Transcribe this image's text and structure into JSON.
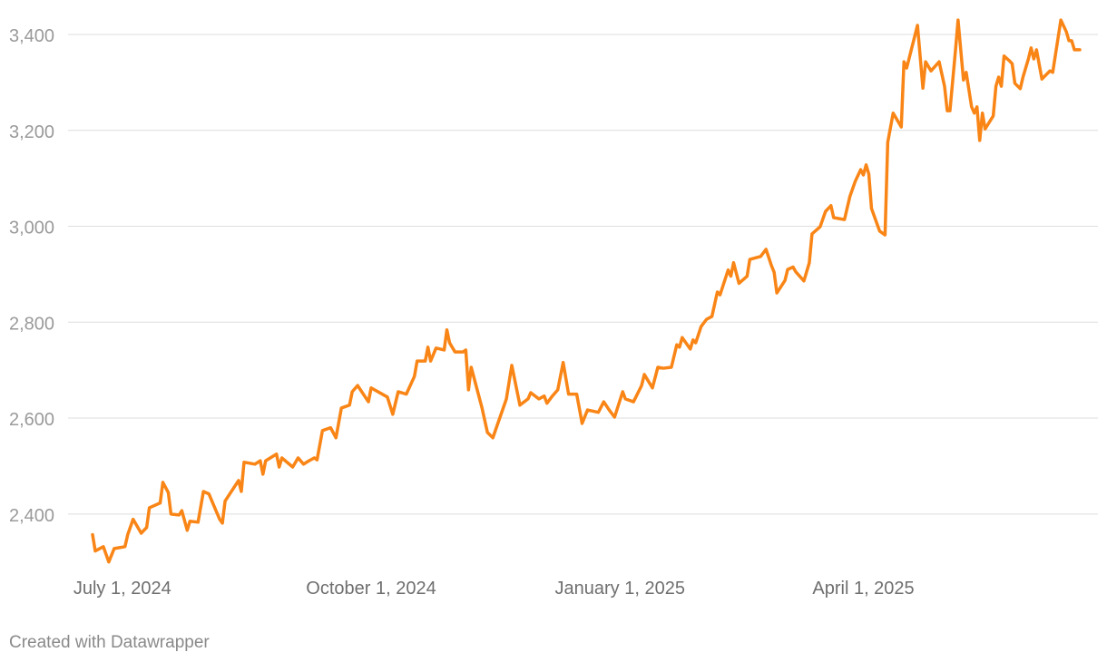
{
  "chart_data": {
    "type": "line",
    "footer": "Created with Datawrapper",
    "color": "#f98516",
    "x": [
      "2024-06-20",
      "2024-06-21",
      "2024-06-24",
      "2024-06-26",
      "2024-06-28",
      "2024-07-02",
      "2024-07-03",
      "2024-07-05",
      "2024-07-08",
      "2024-07-10",
      "2024-07-11",
      "2024-07-15",
      "2024-07-16",
      "2024-07-18",
      "2024-07-19",
      "2024-07-22",
      "2024-07-23",
      "2024-07-25",
      "2024-07-26",
      "2024-07-29",
      "2024-07-31",
      "2024-08-02",
      "2024-08-06",
      "2024-08-07",
      "2024-08-08",
      "2024-08-13",
      "2024-08-14",
      "2024-08-15",
      "2024-08-19",
      "2024-08-21",
      "2024-08-22",
      "2024-08-23",
      "2024-08-27",
      "2024-08-28",
      "2024-08-29",
      "2024-09-02",
      "2024-09-04",
      "2024-09-06",
      "2024-09-08",
      "2024-09-10",
      "2024-09-11",
      "2024-09-13",
      "2024-09-16",
      "2024-09-18",
      "2024-09-20",
      "2024-09-23",
      "2024-09-24",
      "2024-09-26",
      "2024-09-30",
      "2024-10-01",
      "2024-10-07",
      "2024-10-09",
      "2024-10-11",
      "2024-10-14",
      "2024-10-17",
      "2024-10-18",
      "2024-10-21",
      "2024-10-22",
      "2024-10-23",
      "2024-10-25",
      "2024-10-28",
      "2024-10-29",
      "2024-10-30",
      "2024-11-01",
      "2024-11-04",
      "2024-11-05",
      "2024-11-06",
      "2024-11-07",
      "2024-11-11",
      "2024-11-13",
      "2024-11-15",
      "2024-11-20",
      "2024-11-22",
      "2024-11-25",
      "2024-11-28",
      "2024-11-29",
      "2024-12-02",
      "2024-12-04",
      "2024-12-05",
      "2024-12-07",
      "2024-12-09",
      "2024-12-11",
      "2024-12-13",
      "2024-12-16",
      "2024-12-18",
      "2024-12-20",
      "2024-12-24",
      "2024-12-26",
      "2024-12-28",
      "2024-12-30",
      "2025-01-02",
      "2025-01-03",
      "2025-01-06",
      "2025-01-09",
      "2025-01-10",
      "2025-01-13",
      "2025-01-15",
      "2025-01-17",
      "2025-01-20",
      "2025-01-22",
      "2025-01-23",
      "2025-01-24",
      "2025-01-27",
      "2025-01-28",
      "2025-01-29",
      "2025-01-31",
      "2025-02-02",
      "2025-02-04",
      "2025-02-06",
      "2025-02-07",
      "2025-02-10",
      "2025-02-11",
      "2025-02-12",
      "2025-02-14",
      "2025-02-17",
      "2025-02-18",
      "2025-02-22",
      "2025-02-24",
      "2025-02-26",
      "2025-02-27",
      "2025-02-28",
      "2025-03-03",
      "2025-03-04",
      "2025-03-06",
      "2025-03-07",
      "2025-03-10",
      "2025-03-12",
      "2025-03-13",
      "2025-03-16",
      "2025-03-18",
      "2025-03-20",
      "2025-03-21",
      "2025-03-25",
      "2025-03-27",
      "2025-03-29",
      "2025-03-31",
      "2025-04-01",
      "2025-04-02",
      "2025-04-03",
      "2025-04-04",
      "2025-04-07",
      "2025-04-09",
      "2025-04-10",
      "2025-04-12",
      "2025-04-15",
      "2025-04-16",
      "2025-04-17",
      "2025-04-21",
      "2025-04-23",
      "2025-04-24",
      "2025-04-26",
      "2025-04-29",
      "2025-05-01",
      "2025-05-02",
      "2025-05-03",
      "2025-05-05",
      "2025-05-06",
      "2025-05-08",
      "2025-05-09",
      "2025-05-11",
      "2025-05-12",
      "2025-05-13",
      "2025-05-14",
      "2025-05-15",
      "2025-05-16",
      "2025-05-19",
      "2025-05-20",
      "2025-05-21",
      "2025-05-22",
      "2025-05-23",
      "2025-05-25",
      "2025-05-26",
      "2025-05-27",
      "2025-05-29",
      "2025-05-30",
      "2025-06-01",
      "2025-06-02",
      "2025-06-03",
      "2025-06-04",
      "2025-06-06",
      "2025-06-09",
      "2025-06-10",
      "2025-06-13",
      "2025-06-15",
      "2025-06-16",
      "2025-06-17",
      "2025-06-18",
      "2025-06-20"
    ],
    "values": [
      2357,
      2323,
      2332,
      2300,
      2328,
      2332,
      2357,
      2389,
      2360,
      2372,
      2413,
      2423,
      2466,
      2445,
      2400,
      2398,
      2407,
      2366,
      2385,
      2383,
      2447,
      2442,
      2389,
      2381,
      2427,
      2470,
      2447,
      2508,
      2504,
      2511,
      2483,
      2511,
      2525,
      2498,
      2517,
      2498,
      2517,
      2504,
      2511,
      2517,
      2513,
      2574,
      2580,
      2559,
      2621,
      2627,
      2655,
      2668,
      2634,
      2663,
      2644,
      2608,
      2655,
      2650,
      2687,
      2719,
      2719,
      2748,
      2719,
      2746,
      2742,
      2784,
      2757,
      2738,
      2738,
      2742,
      2659,
      2706,
      2621,
      2570,
      2559,
      2640,
      2710,
      2627,
      2640,
      2653,
      2640,
      2646,
      2631,
      2646,
      2659,
      2716,
      2650,
      2650,
      2589,
      2617,
      2612,
      2634,
      2617,
      2602,
      2655,
      2640,
      2634,
      2668,
      2691,
      2663,
      2706,
      2704,
      2706,
      2753,
      2748,
      2768,
      2744,
      2763,
      2757,
      2791,
      2806,
      2812,
      2863,
      2857,
      2909,
      2896,
      2924,
      2881,
      2896,
      2931,
      2937,
      2952,
      2918,
      2904,
      2861,
      2887,
      2910,
      2915,
      2905,
      2886,
      2924,
      2984,
      2999,
      3031,
      3043,
      3018,
      3014,
      3062,
      3094,
      3118,
      3107,
      3128,
      3109,
      3037,
      2990,
      2982,
      3175,
      3236,
      3207,
      3343,
      3330,
      3419,
      3288,
      3343,
      3324,
      3343,
      3292,
      3241,
      3241,
      3364,
      3430,
      3305,
      3321,
      3249,
      3236,
      3249,
      3179,
      3236,
      3203,
      3230,
      3292,
      3311,
      3292,
      3355,
      3345,
      3339,
      3298,
      3287,
      3311,
      3349,
      3372,
      3349,
      3368,
      3307,
      3324,
      3321,
      3430,
      3406,
      3387,
      3387,
      3368,
      3368
    ],
    "xlim": [
      "2024-06-20",
      "2025-06-20"
    ],
    "xticks": [
      {
        "value": "2024-07-01",
        "label": "July 1, 2024"
      },
      {
        "value": "2024-10-01",
        "label": "October 1, 2024"
      },
      {
        "value": "2025-01-01",
        "label": "January 1, 2025"
      },
      {
        "value": "2025-04-01",
        "label": "April 1, 2025"
      }
    ],
    "ylim": [
      2290,
      3434
    ],
    "yticks": [
      {
        "value": 2400,
        "label": "2,400"
      },
      {
        "value": 2600,
        "label": "2,600"
      },
      {
        "value": 2800,
        "label": "2,800"
      },
      {
        "value": 3000,
        "label": "3,000"
      },
      {
        "value": 3200,
        "label": "3,200"
      },
      {
        "value": 3400,
        "label": "3,400"
      }
    ],
    "grid": true
  }
}
